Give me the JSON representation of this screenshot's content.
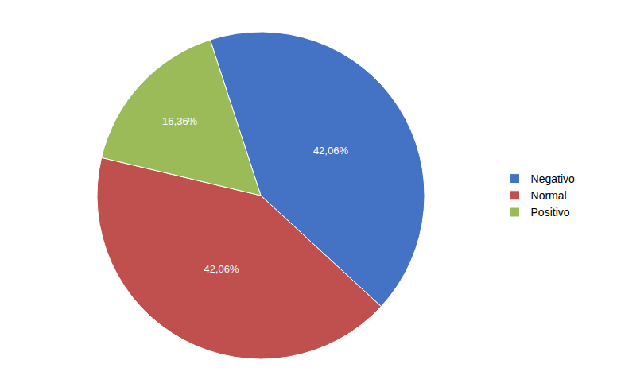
{
  "chart_data": {
    "type": "pie",
    "categories": [
      "Negativo",
      "Normal",
      "Positivo"
    ],
    "values": [
      42.06,
      42.06,
      16.36
    ],
    "value_labels": [
      "42,06%",
      "42,06%",
      "16,36%"
    ],
    "colors": [
      "#4472C4",
      "#C0504D",
      "#9BBB59"
    ],
    "data_labels": true,
    "legend": "right"
  }
}
